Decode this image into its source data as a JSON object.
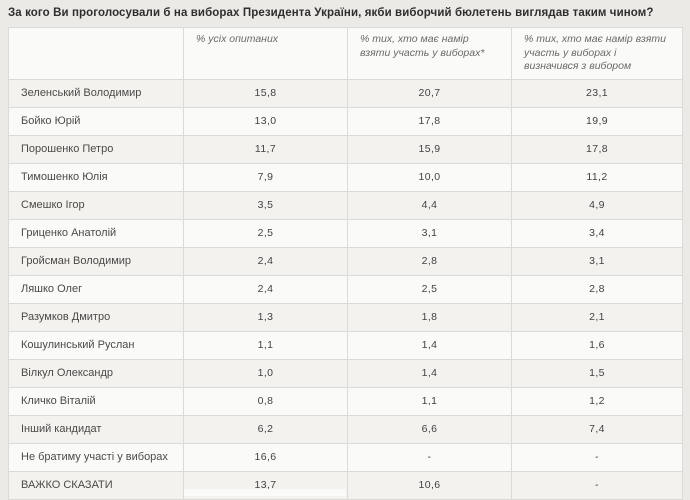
{
  "page": {
    "title": "За кого Ви проголосували б на виборах Президента України, якби виборчий бюлетень виглядав таким чином?"
  },
  "colors": {
    "page_bg": "#eceae7",
    "header_bg": "#fafaf8",
    "row_odd_bg": "#f3f2ef",
    "row_even_bg": "#fafaf8",
    "border": "#dbdad6",
    "title_text": "#2f2e2c",
    "body_text": "#4b4a47",
    "header_text": "#6c6a66"
  },
  "table": {
    "columns": [
      {
        "label": ""
      },
      {
        "label": "% усіх опитаних"
      },
      {
        "label": "% тих, хто має намір взяти участь у виборах*"
      },
      {
        "label": "% тих, хто має намір взяти участь у виборах і визначився з вибором"
      }
    ],
    "rows": [
      {
        "label": "Зеленський Володимир",
        "values": [
          "15,8",
          "20,7",
          "23,1"
        ]
      },
      {
        "label": "Бойко Юрій",
        "values": [
          "13,0",
          "17,8",
          "19,9"
        ]
      },
      {
        "label": "Порошенко Петро",
        "values": [
          "11,7",
          "15,9",
          "17,8"
        ]
      },
      {
        "label": "Тимошенко Юлія",
        "values": [
          "7,9",
          "10,0",
          "11,2"
        ]
      },
      {
        "label": "Смешко Ігор",
        "values": [
          "3,5",
          "4,4",
          "4,9"
        ]
      },
      {
        "label": "Гриценко Анатолій",
        "values": [
          "2,5",
          "3,1",
          "3,4"
        ]
      },
      {
        "label": "Гройсман Володимир",
        "values": [
          "2,4",
          "2,8",
          "3,1"
        ]
      },
      {
        "label": "Ляшко Олег",
        "values": [
          "2,4",
          "2,5",
          "2,8"
        ]
      },
      {
        "label": "Разумков Дмитро",
        "values": [
          "1,3",
          "1,8",
          "2,1"
        ]
      },
      {
        "label": "Кошулинський Руслан",
        "values": [
          "1,1",
          "1,4",
          "1,6"
        ]
      },
      {
        "label": "Вілкул Олександр",
        "values": [
          "1,0",
          "1,4",
          "1,5"
        ]
      },
      {
        "label": "Кличко Віталій",
        "values": [
          "0,8",
          "1,1",
          "1,2"
        ]
      },
      {
        "label": "Інший кандидат",
        "values": [
          "6,2",
          "6,6",
          "7,4"
        ]
      },
      {
        "label": "Не братиму участі у виборах",
        "values": [
          "16,6",
          "-",
          "-"
        ]
      },
      {
        "label": "ВАЖКО СКАЗАТИ",
        "values": [
          "13,7",
          "10,6",
          "-"
        ]
      }
    ]
  },
  "chart_data": {
    "type": "table",
    "title": "За кого Ви проголосували б на виборах Президента України, якби виборчий бюлетень виглядав таким чином?",
    "categories": [
      "Зеленський Володимир",
      "Бойко Юрій",
      "Порошенко Петро",
      "Тимошенко Юлія",
      "Смешко Ігор",
      "Гриценко Анатолій",
      "Гройсман Володимир",
      "Ляшко Олег",
      "Разумков Дмитро",
      "Кошулинський Руслан",
      "Вілкул Олександр",
      "Кличко Віталій",
      "Інший кандидат",
      "Не братиму участі у виборах",
      "ВАЖКО СКАЗАТИ"
    ],
    "series": [
      {
        "name": "% усіх опитаних",
        "values": [
          15.8,
          13.0,
          11.7,
          7.9,
          3.5,
          2.5,
          2.4,
          2.4,
          1.3,
          1.1,
          1.0,
          0.8,
          6.2,
          16.6,
          13.7
        ]
      },
      {
        "name": "% тих, хто має намір взяти участь у виборах*",
        "values": [
          20.7,
          17.8,
          15.9,
          10.0,
          4.4,
          3.1,
          2.8,
          2.5,
          1.8,
          1.4,
          1.4,
          1.1,
          6.6,
          null,
          10.6
        ]
      },
      {
        "name": "% тих, хто має намір взяти участь у виборах і визначився з вибором",
        "values": [
          23.1,
          19.9,
          17.8,
          11.2,
          4.9,
          3.4,
          3.1,
          2.8,
          2.1,
          1.6,
          1.5,
          1.2,
          7.4,
          null,
          null
        ]
      }
    ]
  }
}
